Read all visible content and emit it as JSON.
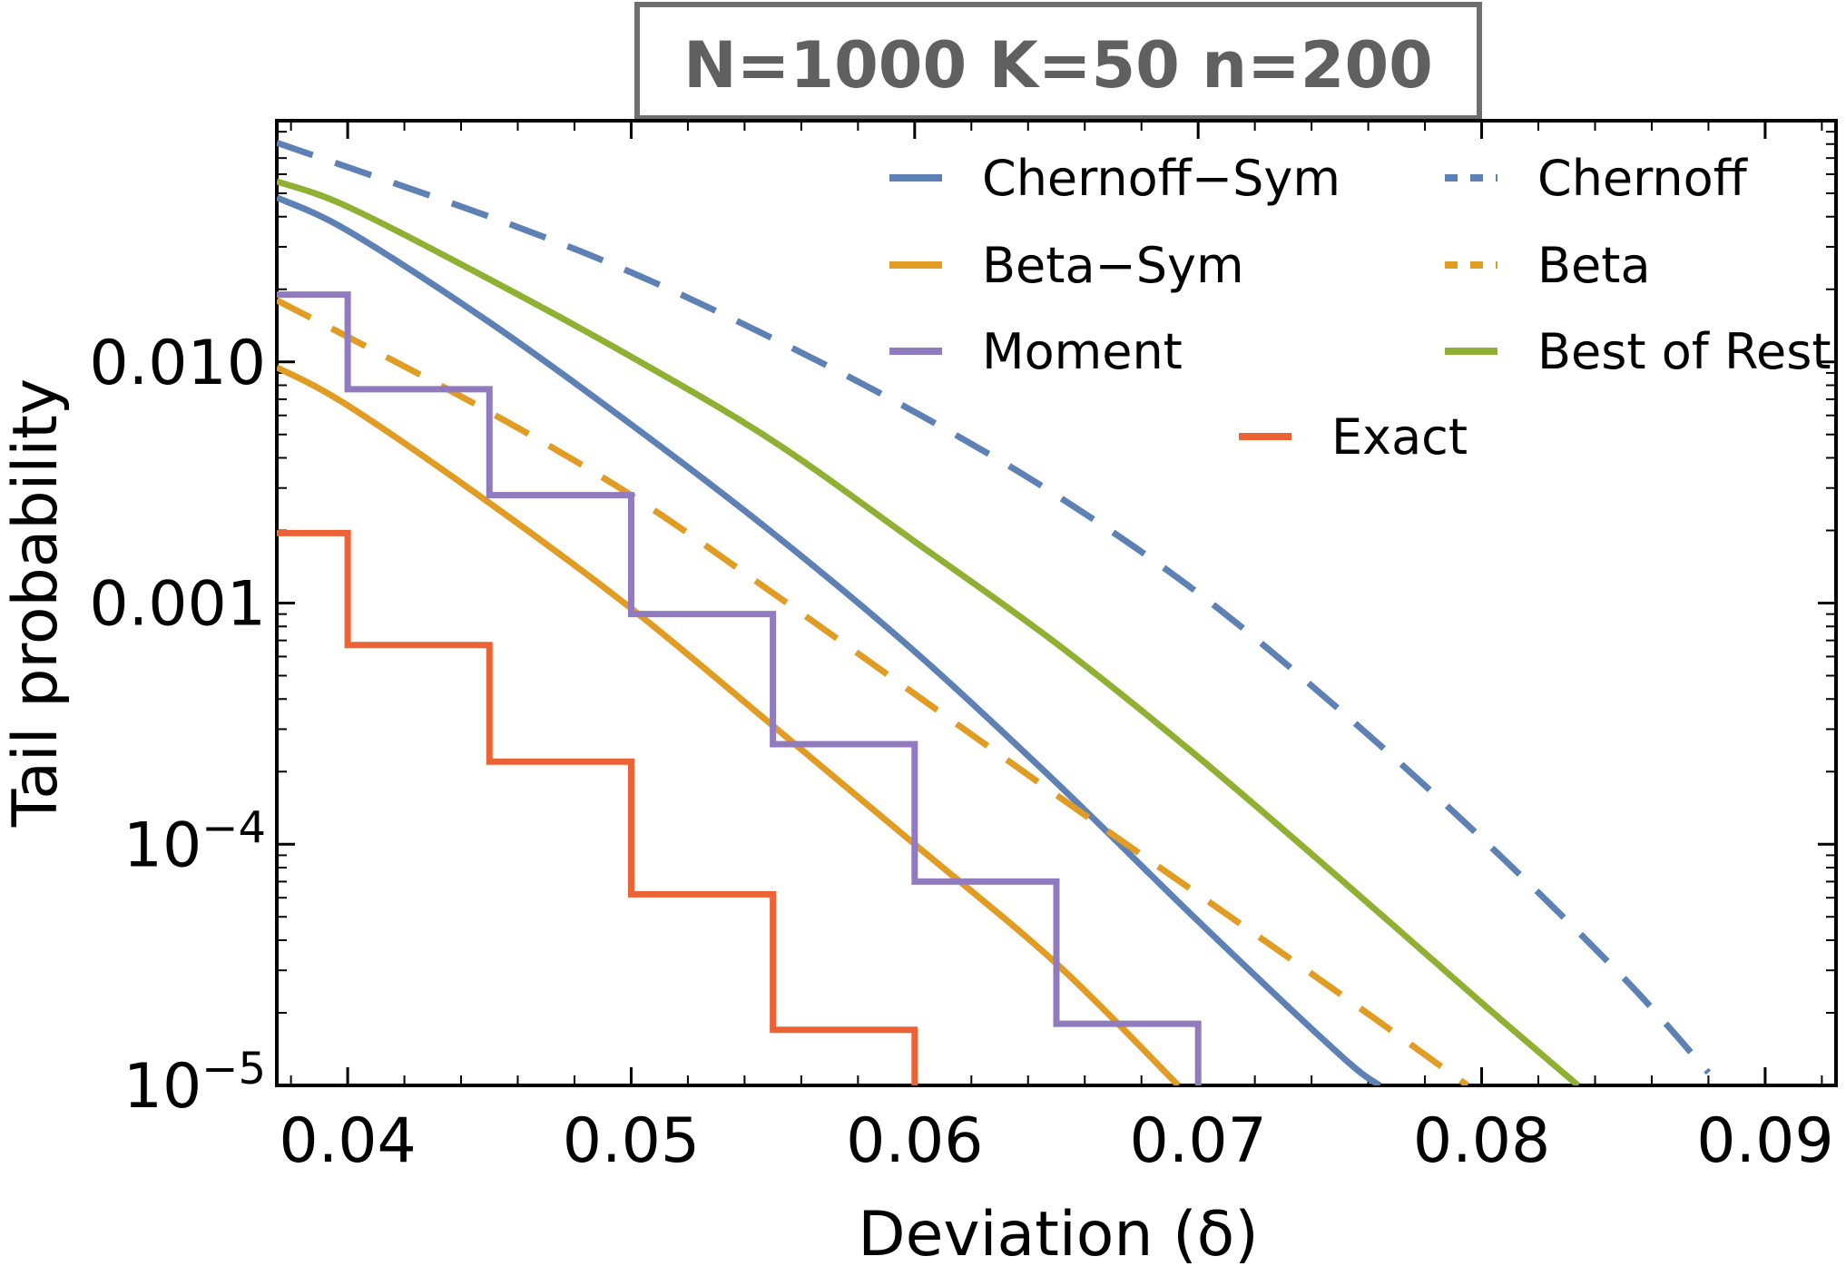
{
  "chart_data": {
    "type": "line",
    "title": "N=1000  K=50  n=200",
    "xlabel": "Deviation (δ)",
    "ylabel": "Tail probability",
    "yscale": "log",
    "xlim": [
      0.0375,
      0.0925
    ],
    "ylim": [
      1e-05,
      0.1
    ],
    "xticks": [
      {
        "value": 0.04,
        "label": "0.04"
      },
      {
        "value": 0.05,
        "label": "0.05"
      },
      {
        "value": 0.06,
        "label": "0.06"
      },
      {
        "value": 0.07,
        "label": "0.07"
      },
      {
        "value": 0.08,
        "label": "0.08"
      },
      {
        "value": 0.09,
        "label": "0.09"
      }
    ],
    "yticks": [
      {
        "value": 0.01,
        "base": "0.010",
        "exp": ""
      },
      {
        "value": 0.001,
        "base": "0.001",
        "exp": ""
      },
      {
        "value": 0.0001,
        "base": "10",
        "exp": "−4"
      },
      {
        "value": 1e-05,
        "base": "10",
        "exp": "−5"
      }
    ],
    "legend_position": "top-right",
    "series": [
      {
        "name": "Chernoff−Sym",
        "color": "#5e81b5",
        "style": "solid",
        "kind": "line",
        "x": [
          0.0375,
          0.04,
          0.045,
          0.05,
          0.055,
          0.06,
          0.065,
          0.07,
          0.075,
          0.0764
        ],
        "y": [
          0.048,
          0.035,
          0.0146,
          0.0055,
          0.00195,
          0.00063,
          0.00018,
          4.8e-05,
          1.34e-05,
          1e-05
        ]
      },
      {
        "name": "Chernoff",
        "color": "#5e81b5",
        "style": "dashed",
        "kind": "line",
        "x": [
          0.0375,
          0.045,
          0.05,
          0.055,
          0.06,
          0.065,
          0.07,
          0.075,
          0.08,
          0.085,
          0.088
        ],
        "y": [
          0.081,
          0.04,
          0.0235,
          0.0125,
          0.0062,
          0.0028,
          0.0011,
          0.00036,
          0.000106,
          2.8e-05,
          1.13e-05
        ]
      },
      {
        "name": "Beta−Sym",
        "color": "#e19c24",
        "style": "solid",
        "kind": "line",
        "x": [
          0.0375,
          0.04,
          0.045,
          0.05,
          0.055,
          0.06,
          0.065,
          0.0693
        ],
        "y": [
          0.0095,
          0.0066,
          0.0026,
          0.00095,
          0.00031,
          0.0001,
          3.2e-05,
          1e-05
        ]
      },
      {
        "name": "Beta",
        "color": "#e19c24",
        "style": "dashed",
        "kind": "line",
        "x": [
          0.0375,
          0.04,
          0.045,
          0.05,
          0.055,
          0.06,
          0.065,
          0.07,
          0.075,
          0.0795
        ],
        "y": [
          0.018,
          0.0127,
          0.0062,
          0.0028,
          0.0011,
          0.00042,
          0.00016,
          6.2e-05,
          2.4e-05,
          1e-05
        ]
      },
      {
        "name": "Moment",
        "color": "#8f7bbd",
        "style": "solid",
        "kind": "step",
        "x": [
          0.0375,
          0.04,
          0.045,
          0.05,
          0.055,
          0.06,
          0.065,
          0.07
        ],
        "y": [
          0.019,
          0.0077,
          0.0028,
          0.0009,
          0.00026,
          7e-05,
          1.8e-05,
          1e-05
        ]
      },
      {
        "name": "Best of Rest",
        "color": "#8fb032",
        "style": "solid",
        "kind": "line",
        "x": [
          0.0375,
          0.04,
          0.045,
          0.05,
          0.055,
          0.06,
          0.065,
          0.07,
          0.075,
          0.08,
          0.0834
        ],
        "y": [
          0.056,
          0.044,
          0.022,
          0.0105,
          0.0047,
          0.0018,
          0.00068,
          0.00023,
          7.2e-05,
          2.2e-05,
          1e-05
        ]
      },
      {
        "name": "Exact",
        "color": "#eb6235",
        "style": "solid",
        "kind": "step",
        "x": [
          0.0375,
          0.04,
          0.045,
          0.05,
          0.055,
          0.06
        ],
        "y": [
          0.00195,
          0.00067,
          0.00022,
          6.2e-05,
          1.7e-05,
          1e-05
        ]
      }
    ]
  }
}
